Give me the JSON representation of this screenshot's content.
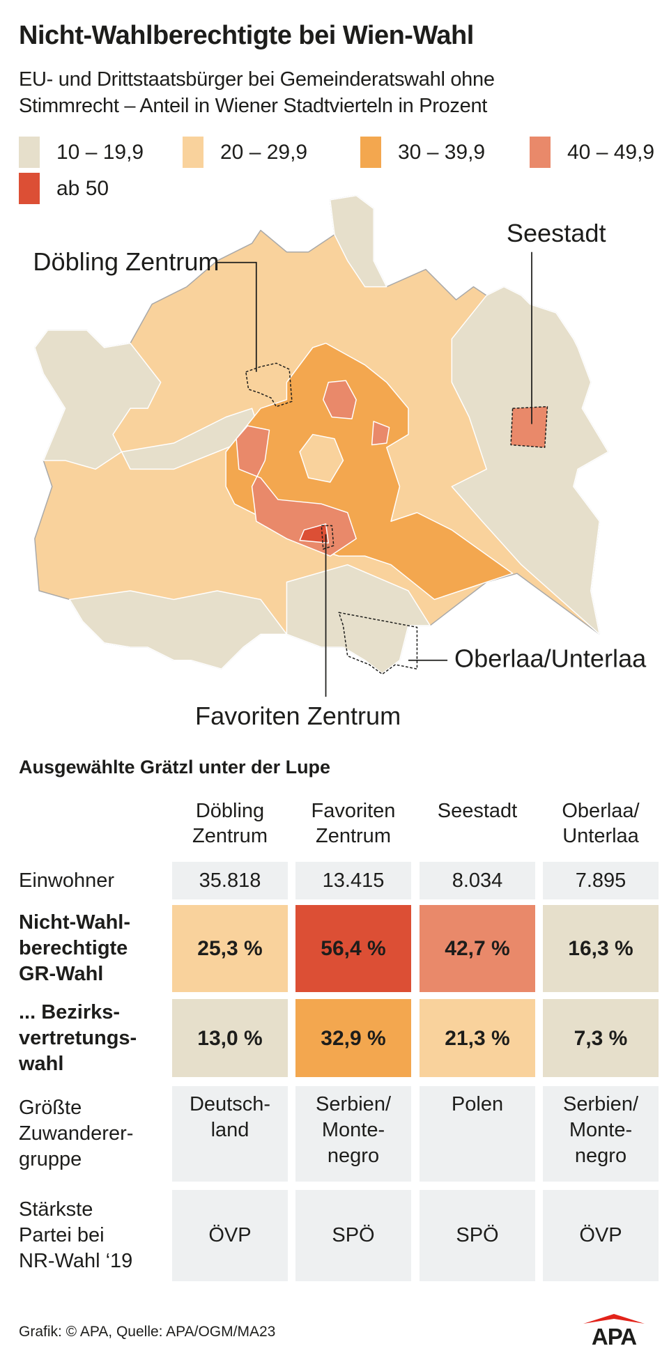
{
  "title": "Nicht-Wahlberechtigte bei Wien-Wahl",
  "subtitle_lines": [
    "EU- und Drittstaatsbürger bei Gemeinderatswahl ohne",
    "Stimmrecht – Anteil in Wiener Stadtvierteln in Prozent"
  ],
  "legend": [
    {
      "label": "10 – 19,9",
      "color": "#e6dfcb"
    },
    {
      "label": "20 – 29,9",
      "color": "#f9d29c"
    },
    {
      "label": "30 – 39,9",
      "color": "#f3a74f"
    },
    {
      "label": "40 – 49,9",
      "color": "#e9896a"
    },
    {
      "label": "ab 50",
      "color": "#dc4f35"
    }
  ],
  "chart_data": {
    "type": "choropleth-map",
    "title": "Nicht-Wahlberechtigte bei Wien-Wahl",
    "unit": "Prozent",
    "classes": [
      "10 – 19,9",
      "20 – 29,9",
      "30 – 39,9",
      "40 – 49,9",
      "ab 50"
    ],
    "highlighted_areas": [
      {
        "name": "Döbling Zentrum",
        "class": "20 – 29,9"
      },
      {
        "name": "Favoriten Zentrum",
        "class": "ab 50"
      },
      {
        "name": "Seestadt",
        "class": "40 – 49,9"
      },
      {
        "name": "Oberlaa/Unterlaa",
        "class": "10 – 19,9"
      }
    ]
  },
  "map_labels": {
    "doebling": "Döbling Zentrum",
    "seestadt": "Seestadt",
    "favoriten": "Favoriten Zentrum",
    "oberlaa": "Oberlaa/Unterlaa"
  },
  "table": {
    "title": "Ausgewählte Grätzl unter der Lupe",
    "columns": [
      {
        "line1": "Döbling",
        "line2": "Zentrum"
      },
      {
        "line1": "Favoriten",
        "line2": "Zentrum"
      },
      {
        "line1": "Seestadt",
        "line2": ""
      },
      {
        "line1": "Oberlaa/",
        "line2": "Unterlaa"
      }
    ],
    "rows": [
      {
        "label": [
          "Einwohner"
        ],
        "values": [
          "35.818",
          "13.415",
          "8.034",
          "7.895"
        ]
      },
      {
        "label": [
          "Nicht-Wahl-",
          "berechtigte",
          "GR-Wahl"
        ],
        "values": [
          "25,3 %",
          "56,4 %",
          "42,7 %",
          "16,3 %"
        ],
        "colors": [
          "#f9d29c",
          "#dc4f35",
          "#e9896a",
          "#e6dfcb"
        ]
      },
      {
        "label": [
          "... Bezirks-",
          "vertretungs-",
          "wahl"
        ],
        "values": [
          "13,0 %",
          "32,9 %",
          "21,3 %",
          "7,3 %"
        ],
        "colors": [
          "#e6dfcb",
          "#f3a74f",
          "#f9d29c",
          "#e6dfcb"
        ]
      },
      {
        "label": [
          "Größte",
          "Zuwanderer-",
          "gruppe"
        ],
        "values": [
          [
            "Deutsch-",
            "land"
          ],
          [
            "Serbien/",
            "Monte-",
            "negro"
          ],
          [
            "Polen"
          ],
          [
            "Serbien/",
            "Monte-",
            "negro"
          ]
        ]
      },
      {
        "label": [
          "Stärkste",
          "Partei bei",
          "NR-Wahl ‘19"
        ],
        "values": [
          "ÖVP",
          "SPÖ",
          "SPÖ",
          "ÖVP"
        ]
      }
    ]
  },
  "footer": "Grafik: © APA, Quelle: APA/OGM/MA23",
  "logo": "APA"
}
